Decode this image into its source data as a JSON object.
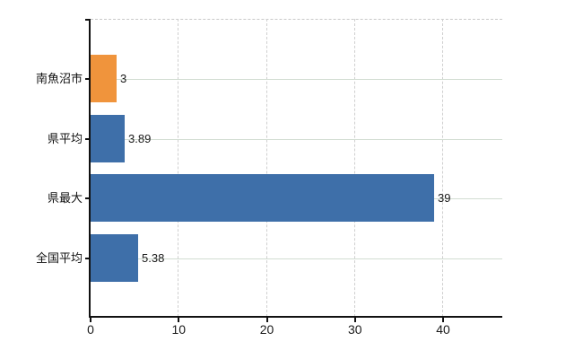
{
  "chart_data": {
    "type": "bar",
    "orientation": "horizontal",
    "title": "",
    "xlabel": "",
    "ylabel": "",
    "categories": [
      "南魚沼市",
      "県平均",
      "県最大",
      "全国平均"
    ],
    "values": [
      3,
      3.89,
      39,
      5.38
    ],
    "value_labels": [
      "3",
      "3.89",
      "39",
      "5.38"
    ],
    "bar_colors": [
      "#f0943c",
      "#3e6fa9",
      "#3e6fa9",
      "#3e6fa9"
    ],
    "x_ticks": [
      0,
      10,
      20,
      30,
      40
    ],
    "x_tick_labels": [
      "0",
      "10",
      "20",
      "30",
      "40"
    ],
    "xlim": [
      0,
      46.7
    ],
    "grid": true,
    "grid_horizontal_style": "solid",
    "grid_vertical_style": "dashed",
    "legend": false
  },
  "colors": {
    "bar_blue": "#3e6fa9",
    "bar_orange": "#f0943c",
    "axis": "#111111",
    "grid_horizontal": "#d2ddd2",
    "grid_vertical": "#cfcfcf",
    "plot_top_border": "#c9c9c9",
    "text": "#1a1a1a",
    "background": "#ffffff"
  }
}
